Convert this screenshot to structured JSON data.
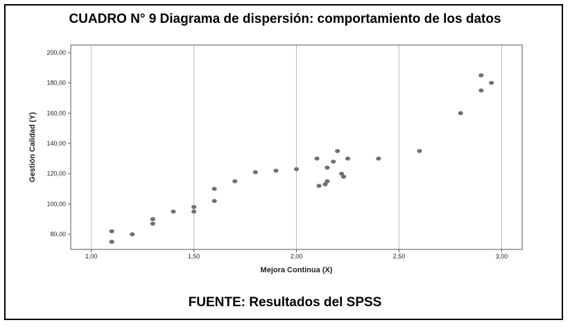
{
  "title": "CUADRO N° 9 Diagrama de dispersión: comportamiento de los datos",
  "footer": "FUENTE: Resultados del SPSS",
  "chart_data": {
    "type": "scatter",
    "xlabel": "Mejora Continua (X)",
    "ylabel": "Gestión Calidad (Y)",
    "xlim": [
      0.9,
      3.1
    ],
    "ylim": [
      70,
      205
    ],
    "xticks": [
      1.0,
      1.5,
      2.0,
      2.5,
      3.0
    ],
    "xtick_labels": [
      "1,00",
      "1,50",
      "2,00",
      "2,50",
      "3,00"
    ],
    "yticks": [
      80,
      100,
      120,
      140,
      160,
      180,
      200
    ],
    "ytick_labels": [
      "80,00",
      "100,00",
      "120,00",
      "140,00",
      "160,00",
      "180,00",
      "200,00"
    ],
    "grid": "vertical",
    "point_color": "#707070",
    "points": [
      {
        "x": 1.1,
        "y": 82
      },
      {
        "x": 1.1,
        "y": 75
      },
      {
        "x": 1.2,
        "y": 80
      },
      {
        "x": 1.3,
        "y": 90
      },
      {
        "x": 1.3,
        "y": 87
      },
      {
        "x": 1.4,
        "y": 95
      },
      {
        "x": 1.5,
        "y": 98
      },
      {
        "x": 1.5,
        "y": 95
      },
      {
        "x": 1.6,
        "y": 110
      },
      {
        "x": 1.6,
        "y": 102
      },
      {
        "x": 1.7,
        "y": 115
      },
      {
        "x": 1.8,
        "y": 121
      },
      {
        "x": 1.9,
        "y": 122
      },
      {
        "x": 2.0,
        "y": 123
      },
      {
        "x": 2.1,
        "y": 130
      },
      {
        "x": 2.11,
        "y": 112
      },
      {
        "x": 2.14,
        "y": 113
      },
      {
        "x": 2.15,
        "y": 124
      },
      {
        "x": 2.15,
        "y": 115
      },
      {
        "x": 2.18,
        "y": 128
      },
      {
        "x": 2.2,
        "y": 135
      },
      {
        "x": 2.22,
        "y": 120
      },
      {
        "x": 2.23,
        "y": 118
      },
      {
        "x": 2.25,
        "y": 130
      },
      {
        "x": 2.4,
        "y": 130
      },
      {
        "x": 2.6,
        "y": 135
      },
      {
        "x": 2.8,
        "y": 160
      },
      {
        "x": 2.9,
        "y": 185
      },
      {
        "x": 2.9,
        "y": 175
      },
      {
        "x": 2.95,
        "y": 180
      }
    ]
  }
}
